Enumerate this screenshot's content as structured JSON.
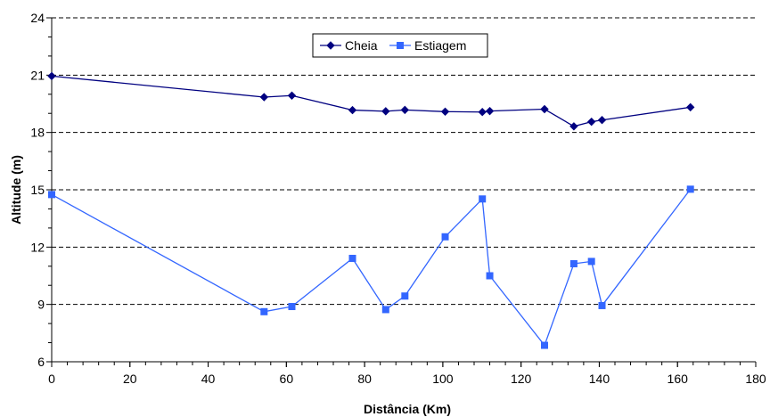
{
  "chart_data": {
    "type": "line",
    "xlabel": "Distância (Km)",
    "ylabel": "Altitude (m)",
    "xlim": [
      0,
      180
    ],
    "ylim": [
      6,
      24
    ],
    "xticks": [
      0,
      20,
      40,
      60,
      80,
      100,
      120,
      140,
      160,
      180
    ],
    "yticks": [
      6,
      9,
      12,
      15,
      18,
      21,
      24
    ],
    "x_minor_step": 4,
    "y_minor_step": 1,
    "grid": "horizontal dashed",
    "legend_position": "top-center",
    "series": [
      {
        "name": "Cheia",
        "color": "#000080",
        "marker": "diamond",
        "x": [
          0,
          54.3,
          61.4,
          76.9,
          85.4,
          90.3,
          100.6,
          110.1,
          112,
          126,
          133.5,
          138,
          140.7,
          163.3
        ],
        "y": [
          20.95,
          19.85,
          19.93,
          19.17,
          19.11,
          19.18,
          19.09,
          19.07,
          19.12,
          19.22,
          18.32,
          18.56,
          18.65,
          19.32
        ]
      },
      {
        "name": "Estiagem",
        "color": "#3366FF",
        "marker": "square",
        "x": [
          0,
          54.3,
          61.4,
          76.9,
          85.4,
          90.3,
          100.6,
          110.1,
          112,
          126,
          133.5,
          138,
          140.7,
          163.3
        ],
        "y": [
          14.75,
          8.62,
          8.89,
          11.41,
          8.73,
          9.44,
          12.54,
          14.52,
          10.5,
          6.86,
          11.13,
          11.25,
          8.94,
          15.03
        ]
      }
    ]
  }
}
